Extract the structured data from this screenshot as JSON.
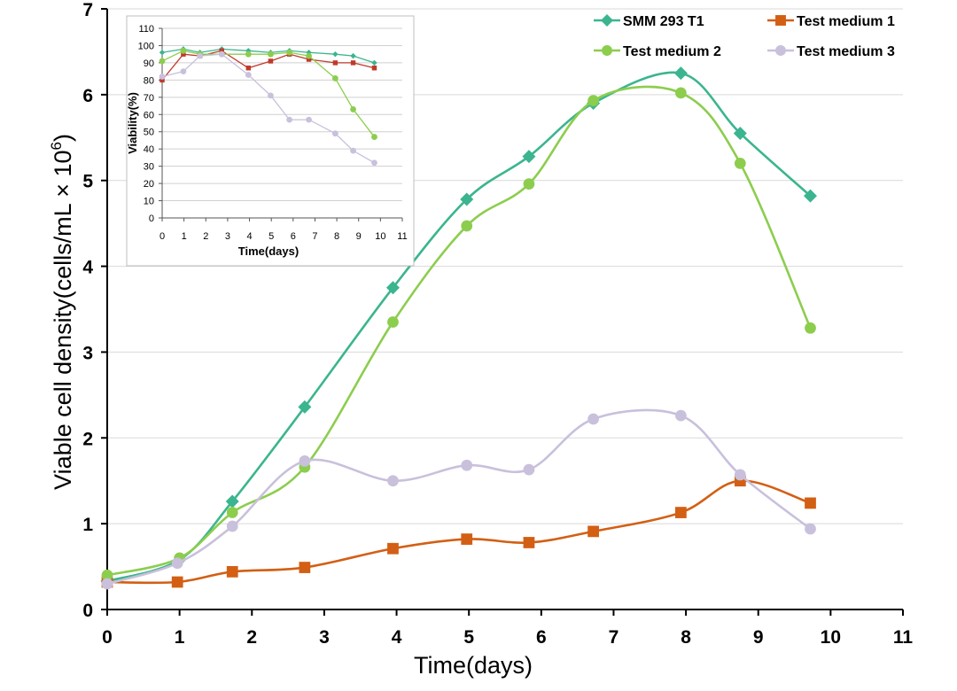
{
  "chart_data": [
    {
      "type": "line",
      "title": "",
      "xlabel": "Time(days)",
      "ylabel": "Viable cell density(cells/mL × 10",
      "ylabel_sup": "6",
      "ylabel_close": ")",
      "xlim": [
        0,
        11
      ],
      "ylim": [
        0,
        7
      ],
      "xticks": [
        "0",
        "1",
        "2",
        "3",
        "4",
        "5",
        "6",
        "7",
        "8",
        "9",
        "10",
        "11"
      ],
      "yticks": [
        "0",
        "1",
        "2",
        "3",
        "4",
        "5",
        "6",
        "7"
      ],
      "grid": true,
      "legend_position": "top-right",
      "series": [
        {
          "name": "SMM 293 T1",
          "color": "#3bb58f",
          "marker": "diamond",
          "x": [
            0,
            1,
            1.73,
            2.73,
            3.95,
            4.97,
            5.83,
            6.72,
            7.93,
            8.75,
            9.72
          ],
          "y": [
            0.33,
            0.58,
            1.26,
            2.36,
            3.75,
            4.78,
            5.28,
            5.9,
            6.25,
            5.55,
            4.82
          ]
        },
        {
          "name": "Test medium 1",
          "color": "#d35f14",
          "marker": "square",
          "x": [
            0,
            0.97,
            1.73,
            2.73,
            3.95,
            4.97,
            5.83,
            6.72,
            7.93,
            8.75,
            9.72
          ],
          "y": [
            0.32,
            0.32,
            0.44,
            0.49,
            0.71,
            0.82,
            0.78,
            0.91,
            1.13,
            1.5,
            1.24
          ]
        },
        {
          "name": "Test medium 2",
          "color": "#8ccd4e",
          "marker": "circle",
          "x": [
            0,
            1,
            1.73,
            2.73,
            3.95,
            4.97,
            5.83,
            6.72,
            7.93,
            8.75,
            9.72
          ],
          "y": [
            0.4,
            0.6,
            1.13,
            1.66,
            3.35,
            4.47,
            4.96,
            5.93,
            6.02,
            5.2,
            3.28
          ]
        },
        {
          "name": "Test medium 3",
          "color": "#c9c0dc",
          "marker": "circle",
          "x": [
            0,
            0.97,
            1.73,
            2.73,
            3.95,
            4.97,
            5.83,
            6.72,
            7.93,
            8.75,
            9.72
          ],
          "y": [
            0.3,
            0.54,
            0.97,
            1.73,
            1.5,
            1.68,
            1.63,
            2.22,
            2.26,
            1.57,
            0.94
          ]
        }
      ]
    },
    {
      "type": "line",
      "title": "",
      "xlabel": "Time(days)",
      "ylabel": "Viability(%)",
      "xlim": [
        0,
        11
      ],
      "ylim": [
        0,
        110
      ],
      "xticks": [
        "0",
        "1",
        "2",
        "3",
        "4",
        "5",
        "6",
        "7",
        "8",
        "9",
        "10",
        "11"
      ],
      "yticks": [
        "0",
        "10",
        "20",
        "30",
        "40",
        "50",
        "60",
        "70",
        "80",
        "90",
        "100",
        "110"
      ],
      "grid": true,
      "series": [
        {
          "name": "SMM 293 T1",
          "color": "#3bb58f",
          "marker": "diamond",
          "x": [
            0,
            0.97,
            1.73,
            2.73,
            3.95,
            4.97,
            5.83,
            6.72,
            7.93,
            8.75,
            9.72
          ],
          "y": [
            96,
            98,
            96,
            98,
            97,
            96,
            97,
            96,
            95,
            94,
            90
          ]
        },
        {
          "name": "Test medium 1",
          "color": "#c0392b",
          "marker": "square",
          "x": [
            0,
            0.97,
            1.73,
            2.73,
            3.95,
            4.97,
            5.83,
            6.72,
            7.93,
            8.75,
            9.72
          ],
          "y": [
            80,
            95,
            94,
            97,
            87,
            91,
            95,
            92,
            90,
            90,
            87
          ]
        },
        {
          "name": "Test medium 2",
          "color": "#8ccd4e",
          "marker": "circle",
          "x": [
            0,
            0.97,
            1.73,
            2.73,
            3.95,
            4.97,
            5.83,
            6.72,
            7.93,
            8.75,
            9.72
          ],
          "y": [
            91,
            97,
            95,
            95,
            95,
            95,
            96,
            94,
            81,
            63,
            47
          ]
        },
        {
          "name": "Test medium 3",
          "color": "#c9c0dc",
          "marker": "circle",
          "x": [
            0,
            0.97,
            1.73,
            2.73,
            3.95,
            4.97,
            5.83,
            6.72,
            7.93,
            8.75,
            9.72
          ],
          "y": [
            82,
            85,
            94,
            95,
            83,
            71,
            57,
            57,
            49,
            39,
            32
          ]
        }
      ]
    }
  ]
}
